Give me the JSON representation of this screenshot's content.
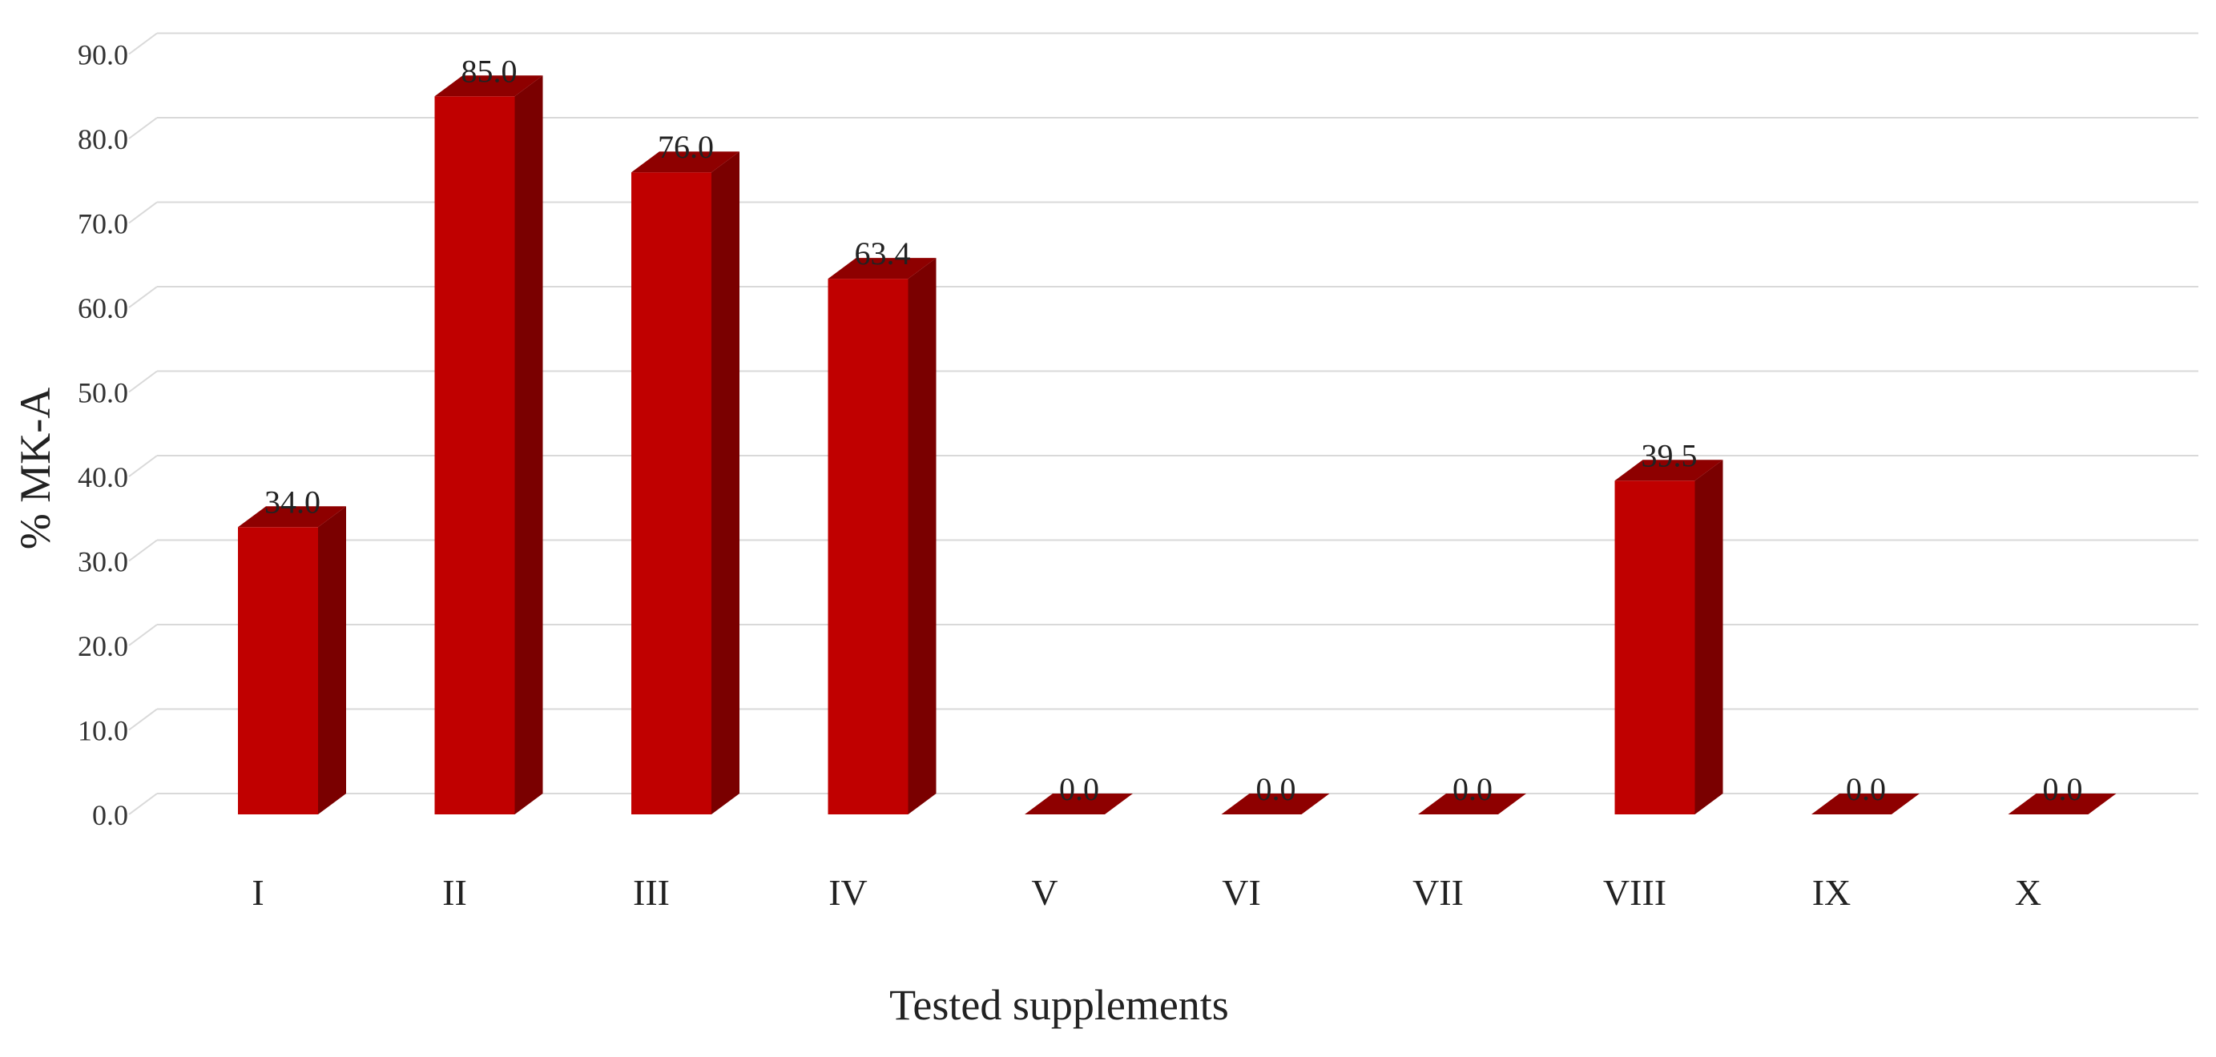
{
  "chart_data": {
    "type": "bar",
    "title": "",
    "xlabel": "Tested supplements",
    "ylabel": "% MK-A",
    "categories": [
      "I",
      "II",
      "III",
      "IV",
      "V",
      "VI",
      "VII",
      "VIII",
      "IX",
      "X"
    ],
    "values": [
      34.0,
      85.0,
      76.0,
      63.4,
      0.0,
      0.0,
      0.0,
      39.5,
      0.0,
      0.0
    ],
    "value_labels": [
      "34.0",
      "85.0",
      "76.0",
      "63.4",
      "0.0",
      "0.0",
      "0.0",
      "39.5",
      "0.0",
      "0.0"
    ],
    "yticks": [
      "0.0",
      "10.0",
      "20.0",
      "30.0",
      "40.0",
      "50.0",
      "60.0",
      "70.0",
      "80.0",
      "90.0"
    ],
    "ylim": [
      0,
      100
    ],
    "grid": true,
    "bar_style": "3d-column",
    "colors": {
      "bar_front": "#c00000",
      "bar_side": "#7a0000",
      "bar_top": "#8e0000",
      "grid": "#d9d9d9"
    }
  }
}
